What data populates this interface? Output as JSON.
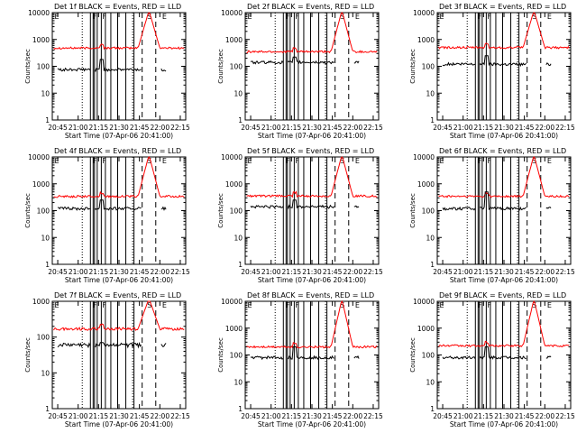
{
  "chart_data": [
    {
      "type": "line",
      "title": "Det 1f BLACK = Events, RED = LLD",
      "ylabel": "Counts/sec",
      "xlabel": "Start Time (07-Apr-06 20:41:00)",
      "x_ticks": [
        "20:45",
        "21:00",
        "21:15",
        "21:30",
        "21:45",
        "22:00",
        "22:15"
      ],
      "y_ticks": [
        "1",
        "10",
        "100",
        "1000",
        "10000"
      ],
      "y_scale": "log",
      "ylim": [
        1,
        10000
      ],
      "markers": [
        "E",
        "F",
        "F",
        "S",
        "E"
      ],
      "series": [
        {
          "color": "#000000",
          "start": "21:00",
          "baseline": 75,
          "spike": 180,
          "gaps": true
        },
        {
          "color": "#ff0000",
          "baseline": 480,
          "flare_peak": 12000
        }
      ]
    },
    {
      "type": "line",
      "title": "Det 2f BLACK = Events, RED = LLD",
      "ylabel": "Counts/sec",
      "xlabel": "Start Time (07-Apr-06 20:41:00)",
      "x_ticks": [
        "20:45",
        "21:00",
        "21:15",
        "21:30",
        "21:45",
        "22:00",
        "22:15"
      ],
      "y_ticks": [
        "1",
        "10",
        "100",
        "1000",
        "10000"
      ],
      "y_scale": "log",
      "ylim": [
        1,
        10000
      ],
      "markers": [
        "E",
        "F",
        "F",
        "S",
        "E"
      ],
      "series": [
        {
          "color": "#000000",
          "baseline": 140,
          "spike": 220,
          "gaps": true
        },
        {
          "color": "#ff0000",
          "baseline": 350,
          "flare_peak": 12000
        }
      ]
    },
    {
      "type": "line",
      "title": "Det 3f BLACK = Events, RED = LLD",
      "ylabel": "Counts/sec",
      "xlabel": "Start Time (07-Apr-06 20:41:00)",
      "x_ticks": [
        "20:45",
        "21:00",
        "21:15",
        "21:30",
        "21:45",
        "22:00",
        "22:15"
      ],
      "y_ticks": [
        "1",
        "10",
        "100",
        "1000",
        "10000"
      ],
      "y_scale": "log",
      "ylim": [
        1,
        10000
      ],
      "markers": [
        "E",
        "F",
        "F",
        "S",
        "E"
      ],
      "series": [
        {
          "color": "#000000",
          "baseline": 120,
          "spike": 250,
          "gaps": true
        },
        {
          "color": "#ff0000",
          "baseline": 500,
          "flare_peak": 12000
        }
      ]
    },
    {
      "type": "line",
      "title": "Det 4f BLACK = Events, RED = LLD",
      "ylabel": "Counts/sec",
      "xlabel": "Start Time (07-Apr-06 20:41:00)",
      "x_ticks": [
        "20:45",
        "21:00",
        "21:15",
        "21:30",
        "21:45",
        "22:00",
        "22:15"
      ],
      "y_ticks": [
        "1",
        "10",
        "100",
        "1000",
        "10000"
      ],
      "y_scale": "log",
      "ylim": [
        1,
        10000
      ],
      "markers": [
        "E",
        "F",
        "F",
        "S",
        "E"
      ],
      "series": [
        {
          "color": "#000000",
          "baseline": 120,
          "spike": 250,
          "gaps": true
        },
        {
          "color": "#ff0000",
          "baseline": 340,
          "flare_peak": 12000
        }
      ]
    },
    {
      "type": "line",
      "title": "Det 5f BLACK = Events, RED = LLD",
      "ylabel": "Counts/sec",
      "xlabel": "Start Time (07-Apr-06 20:41:00)",
      "x_ticks": [
        "20:45",
        "21:00",
        "21:15",
        "21:30",
        "21:45",
        "22:00",
        "22:15"
      ],
      "y_ticks": [
        "1",
        "10",
        "100",
        "1000",
        "10000"
      ],
      "y_scale": "log",
      "ylim": [
        1,
        10000
      ],
      "markers": [
        "E",
        "F",
        "F",
        "S",
        "E"
      ],
      "series": [
        {
          "color": "#000000",
          "baseline": 140,
          "spike": 250,
          "gaps": true
        },
        {
          "color": "#ff0000",
          "baseline": 350,
          "flare_peak": 12000
        }
      ]
    },
    {
      "type": "line",
      "title": "Det 6f BLACK = Events, RED = LLD",
      "ylabel": "Counts/sec",
      "xlabel": "Start Time (07-Apr-06 20:41:00)",
      "x_ticks": [
        "20:45",
        "21:00",
        "21:15",
        "21:30",
        "21:45",
        "22:00",
        "22:15"
      ],
      "y_ticks": [
        "1",
        "10",
        "100",
        "1000",
        "10000"
      ],
      "y_scale": "log",
      "ylim": [
        1,
        10000
      ],
      "markers": [
        "E",
        "F",
        "F",
        "S",
        "E"
      ],
      "series": [
        {
          "color": "#000000",
          "baseline": 120,
          "spike": 500,
          "gaps": true
        },
        {
          "color": "#ff0000",
          "baseline": 340,
          "flare_peak": 12000
        }
      ]
    },
    {
      "type": "line",
      "title": "Det 7f BLACK = Events, RED = LLD",
      "ylabel": "Counts/sec",
      "xlabel": "Start Time (07-Apr-06 20:41:00)",
      "x_ticks": [
        "20:45",
        "21:00",
        "21:15",
        "21:30",
        "21:45",
        "22:00",
        "22:15"
      ],
      "y_ticks": [
        "1",
        "10",
        "100",
        "1000"
      ],
      "y_scale": "log",
      "ylim": [
        1,
        1000
      ],
      "markers": [
        "E",
        "F",
        "F",
        "S",
        "E"
      ],
      "series": [
        {
          "color": "#000000",
          "baseline": 60,
          "spike": 70,
          "gaps": true
        },
        {
          "color": "#ff0000",
          "baseline": 170,
          "flare_peak": 1200
        }
      ]
    },
    {
      "type": "line",
      "title": "Det 8f BLACK = Events, RED = LLD",
      "ylabel": "Counts/sec",
      "xlabel": "Start Time (07-Apr-06 20:41:00)",
      "x_ticks": [
        "20:45",
        "21:00",
        "21:15",
        "21:30",
        "21:45",
        "22:00",
        "22:15"
      ],
      "y_ticks": [
        "1",
        "10",
        "100",
        "1000",
        "10000"
      ],
      "y_scale": "log",
      "ylim": [
        1,
        10000
      ],
      "markers": [
        "E",
        "F",
        "F",
        "S",
        "E"
      ],
      "series": [
        {
          "color": "#000000",
          "baseline": 80,
          "spike": 200,
          "gaps": true
        },
        {
          "color": "#ff0000",
          "baseline": 200,
          "flare_peak": 12000
        }
      ]
    },
    {
      "type": "line",
      "title": "Det 9f BLACK = Events, RED = LLD",
      "ylabel": "Counts/sec",
      "xlabel": "Start Time (07-Apr-06 20:41:00)",
      "x_ticks": [
        "20:45",
        "21:00",
        "21:15",
        "21:30",
        "21:45",
        "22:00",
        "22:15"
      ],
      "y_ticks": [
        "1",
        "10",
        "100",
        "1000",
        "10000"
      ],
      "y_scale": "log",
      "ylim": [
        1,
        10000
      ],
      "markers": [
        "E",
        "F",
        "F",
        "S",
        "E"
      ],
      "series": [
        {
          "color": "#000000",
          "baseline": 80,
          "spike": 200,
          "gaps": true
        },
        {
          "color": "#ff0000",
          "baseline": 220,
          "flare_peak": 12000
        }
      ]
    }
  ]
}
